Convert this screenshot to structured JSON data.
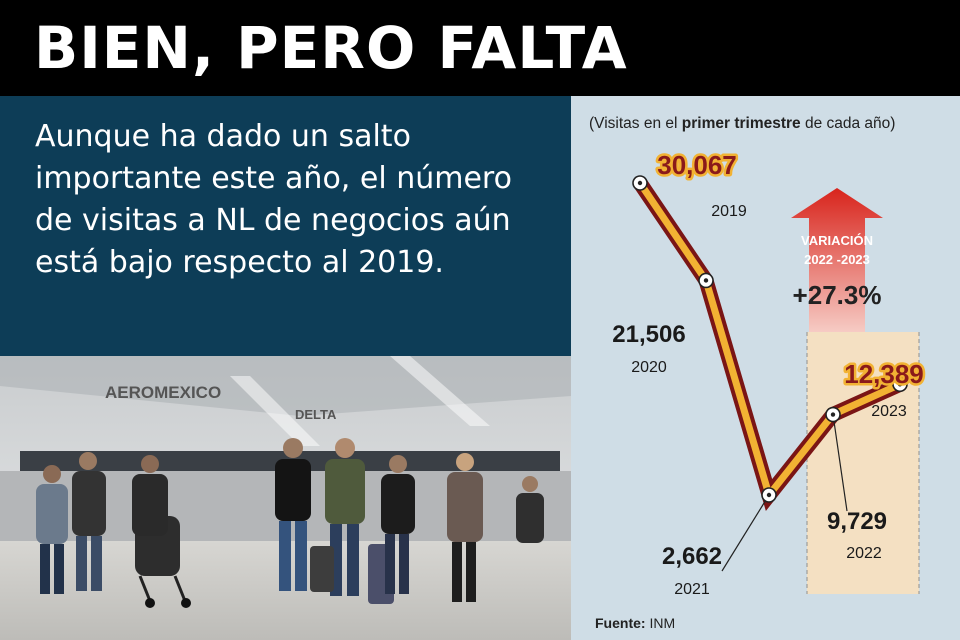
{
  "title": "BIEN, PERO FALTA",
  "intro_text": "Aunque ha dado un salto importante este año, el número de visitas a NL de negocios aún está bajo respecto al 2019.",
  "photo": {
    "signs": [
      "AEROMEXICO",
      "DELTA"
    ]
  },
  "colors": {
    "panel_bg": "#cfdde6",
    "line_outer": "#7a1515",
    "line_inner": "#f2b233",
    "highlight": "#f4e0c2",
    "arrow_top": "#d8241c",
    "arrow_bottom": "#f6cbc4",
    "value_label": "#8a1a1a"
  },
  "chart_data": {
    "type": "line",
    "subtitle_pre": "(Visitas en el ",
    "subtitle_bold": "primer trimestre",
    "subtitle_post": " de cada año)",
    "x": [
      "2019",
      "2020",
      "2021",
      "2022",
      "2023"
    ],
    "values": [
      30067,
      21506,
      2662,
      9729,
      12389
    ],
    "value_labels": [
      "30,067",
      "21,506",
      "2,662",
      "9,729",
      "12,389"
    ],
    "highlighted": [
      "2019",
      "2023"
    ],
    "variation": {
      "title_line1": "VARIACIÓN",
      "title_line2": "2022 -2023",
      "value": "+27.3%"
    },
    "source_label": "Fuente:",
    "source_value": "INM"
  }
}
